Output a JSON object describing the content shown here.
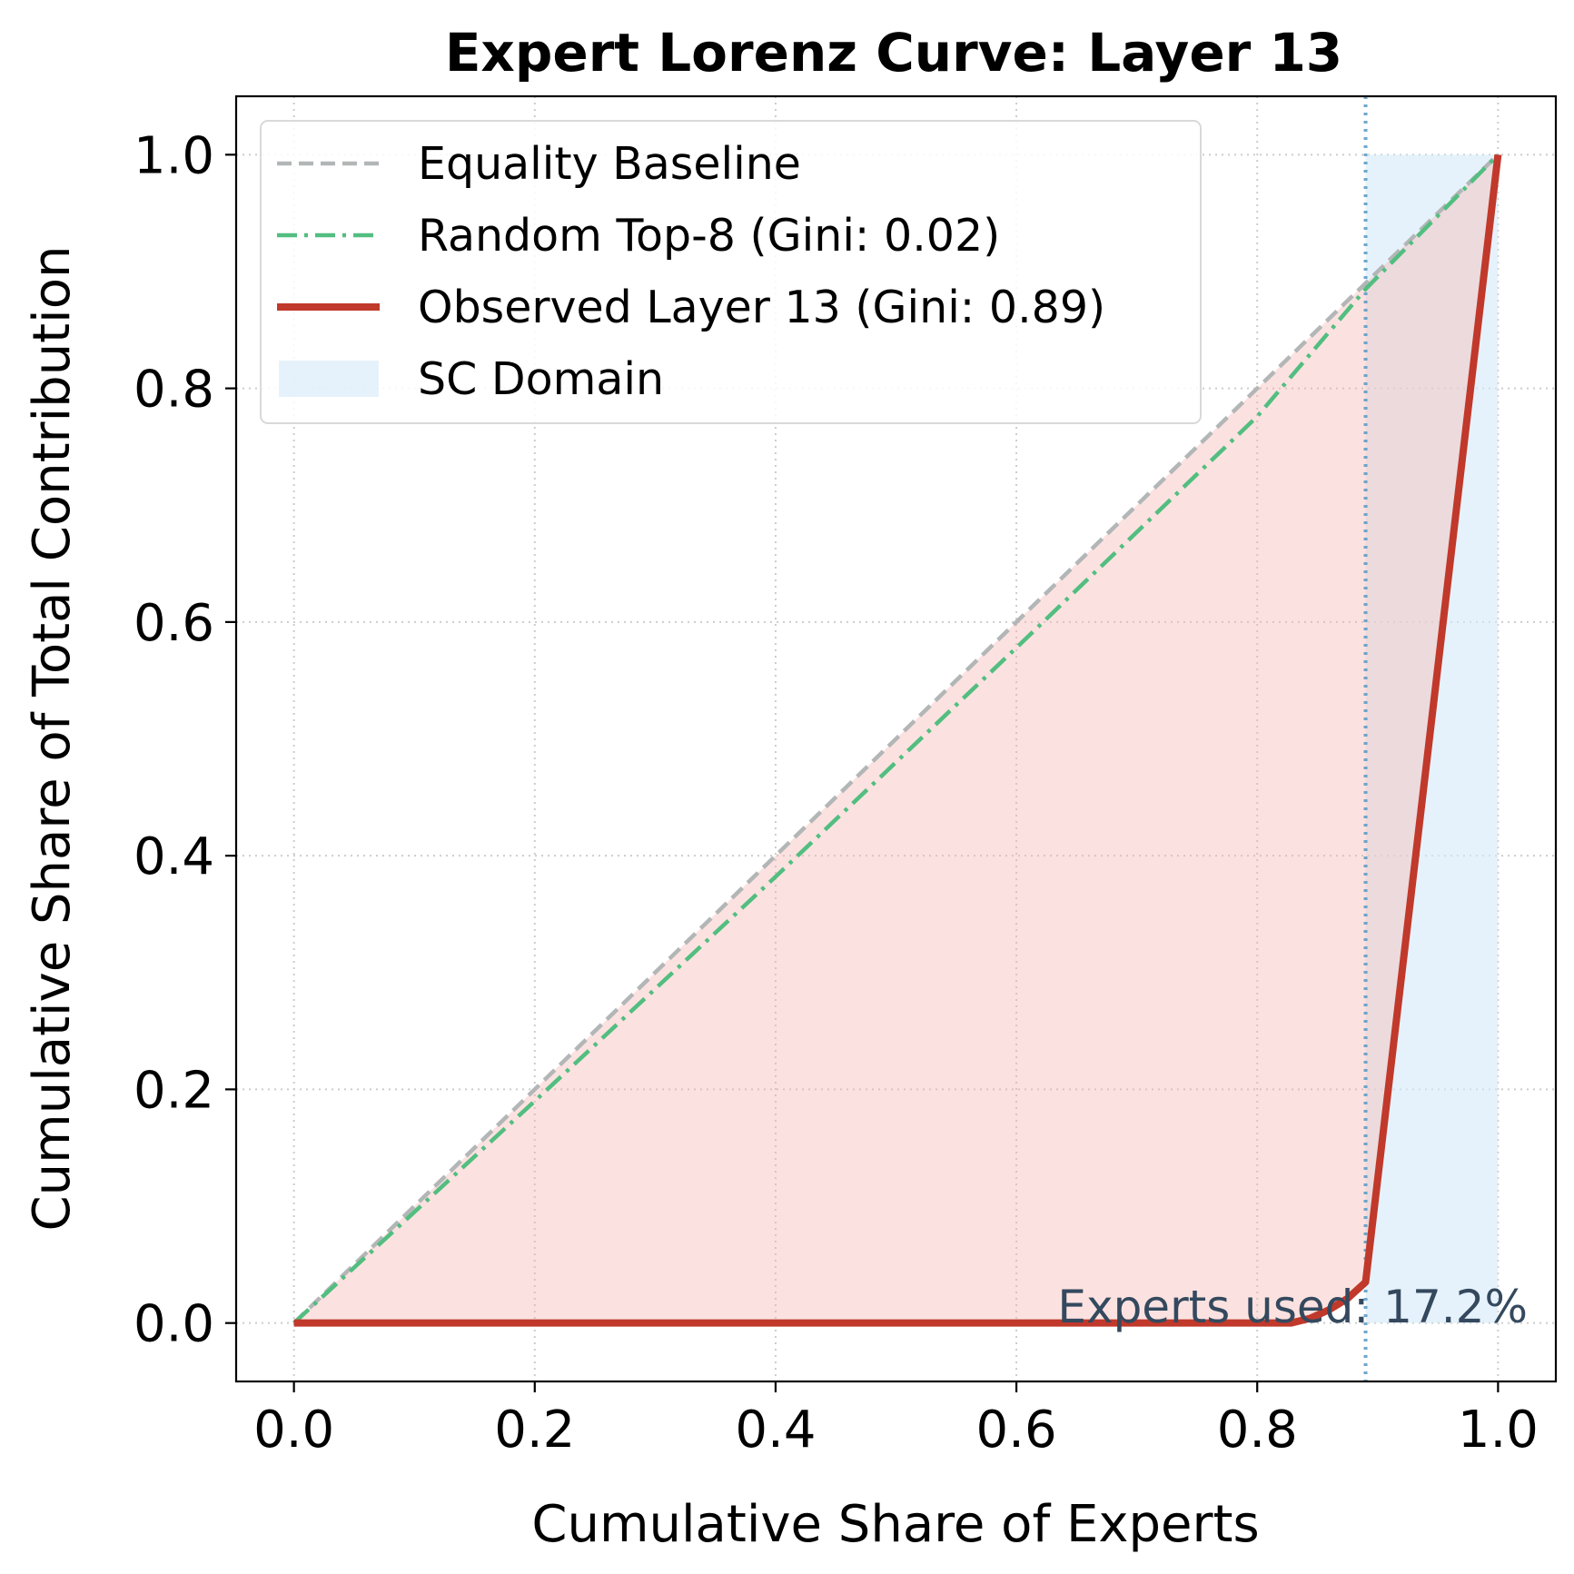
{
  "chart_data": {
    "type": "line",
    "title": "Expert Lorenz Curve: Layer 13",
    "xlabel": "Cumulative Share of Experts",
    "ylabel": "Cumulative Share of Total Contribution",
    "xlim": [
      -0.048,
      1.048
    ],
    "ylim": [
      -0.05,
      1.05
    ],
    "xticks": [
      0.0,
      0.2,
      0.4,
      0.6,
      0.8,
      1.0
    ],
    "xtick_labels": [
      "0.0",
      "0.2",
      "0.4",
      "0.6",
      "0.8",
      "1.0"
    ],
    "yticks": [
      0.0,
      0.2,
      0.4,
      0.6,
      0.8,
      1.0
    ],
    "ytick_labels": [
      "0.0",
      "0.2",
      "0.4",
      "0.6",
      "0.8",
      "1.0"
    ],
    "grid": true,
    "legend_position": "upper-left",
    "series": [
      {
        "name": "Equality Baseline",
        "style": "dashed",
        "color": "#b3b6b7",
        "x": [
          0.0,
          1.0
        ],
        "y": [
          0.0,
          1.0
        ]
      },
      {
        "name": "Random Top-8 (Gini: 0.02)",
        "style": "dashdot",
        "color": "#52be80",
        "x": [
          0.0,
          0.2,
          0.4,
          0.6,
          0.8,
          0.89,
          1.0
        ],
        "y": [
          0.0,
          0.19,
          0.382,
          0.578,
          0.776,
          0.885,
          1.0
        ]
      },
      {
        "name": "Observed Layer 13 (Gini: 0.89)",
        "style": "solid",
        "color": "#c0392b",
        "x": [
          0.0,
          0.2,
          0.4,
          0.6,
          0.8,
          0.828,
          0.844,
          0.859,
          0.875,
          0.89,
          1.0
        ],
        "y": [
          0.0,
          0.0,
          0.0,
          0.0,
          0.0,
          0.0,
          0.004,
          0.011,
          0.021,
          0.035,
          1.0
        ]
      }
    ],
    "shaded_regions": [
      {
        "name": "SC Domain",
        "color": "#d6eaf8",
        "x_range": [
          0.89,
          1.0
        ],
        "y_range": [
          0.0,
          1.0
        ]
      }
    ],
    "fill_between": {
      "upper": "Equality Baseline",
      "lower": "Observed Layer 13 (Gini: 0.89)",
      "color": "#f5b7b1"
    },
    "vertical_line": {
      "x": 0.89,
      "style": "dotted",
      "color": "#5499c7"
    },
    "annotation": {
      "text": "Experts used: 17.2%",
      "x": 1.0,
      "y": 0.0,
      "color": "#34495e"
    }
  }
}
